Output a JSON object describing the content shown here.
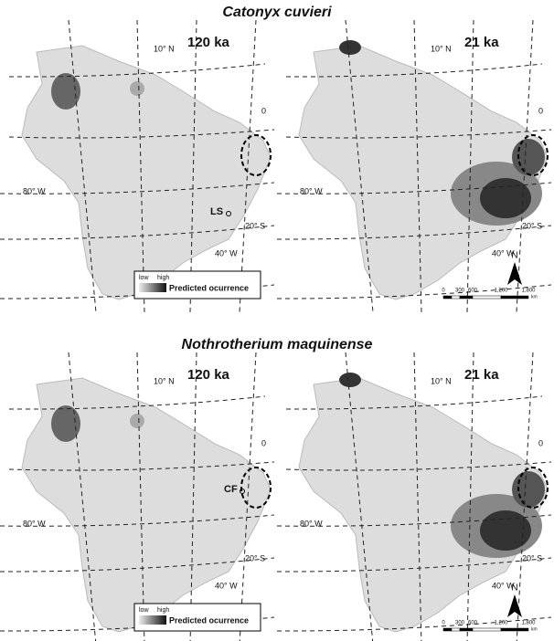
{
  "figures": [
    {
      "title": "Catonyx cuvieri",
      "panels": [
        {
          "period": "120 ka",
          "graticule": {
            "lat_north": "10° N",
            "equator": "0",
            "lon_west": "80° W",
            "lat_south": "20° S",
            "lon_east": "40° W"
          },
          "site": "LS"
        },
        {
          "period": "21 ka",
          "graticule": {
            "lat_north": "10° N",
            "equator": "0",
            "lon_west": "80° W",
            "lat_south": "20° S",
            "lon_east": "40° W"
          }
        }
      ]
    },
    {
      "title": "Nothrotherium maquinense",
      "panels": [
        {
          "period": "120 ka",
          "graticule": {
            "lat_north": "10° N",
            "equator": "0",
            "lon_west": "80° W",
            "lat_south": "20° S",
            "lon_east": "40° W"
          },
          "site": "CF"
        },
        {
          "period": "21 ka",
          "graticule": {
            "lat_north": "10° N",
            "equator": "0",
            "lon_west": "80° W",
            "lat_south": "20° S",
            "lon_east": "40° W"
          }
        }
      ]
    }
  ],
  "legend": {
    "low": "low",
    "high": "high",
    "label": "Predicted ocurrence"
  },
  "scale_bar": {
    "ticks": [
      "0",
      "300",
      "600",
      "1,200",
      "1,800"
    ],
    "unit": "km"
  },
  "north": "N"
}
